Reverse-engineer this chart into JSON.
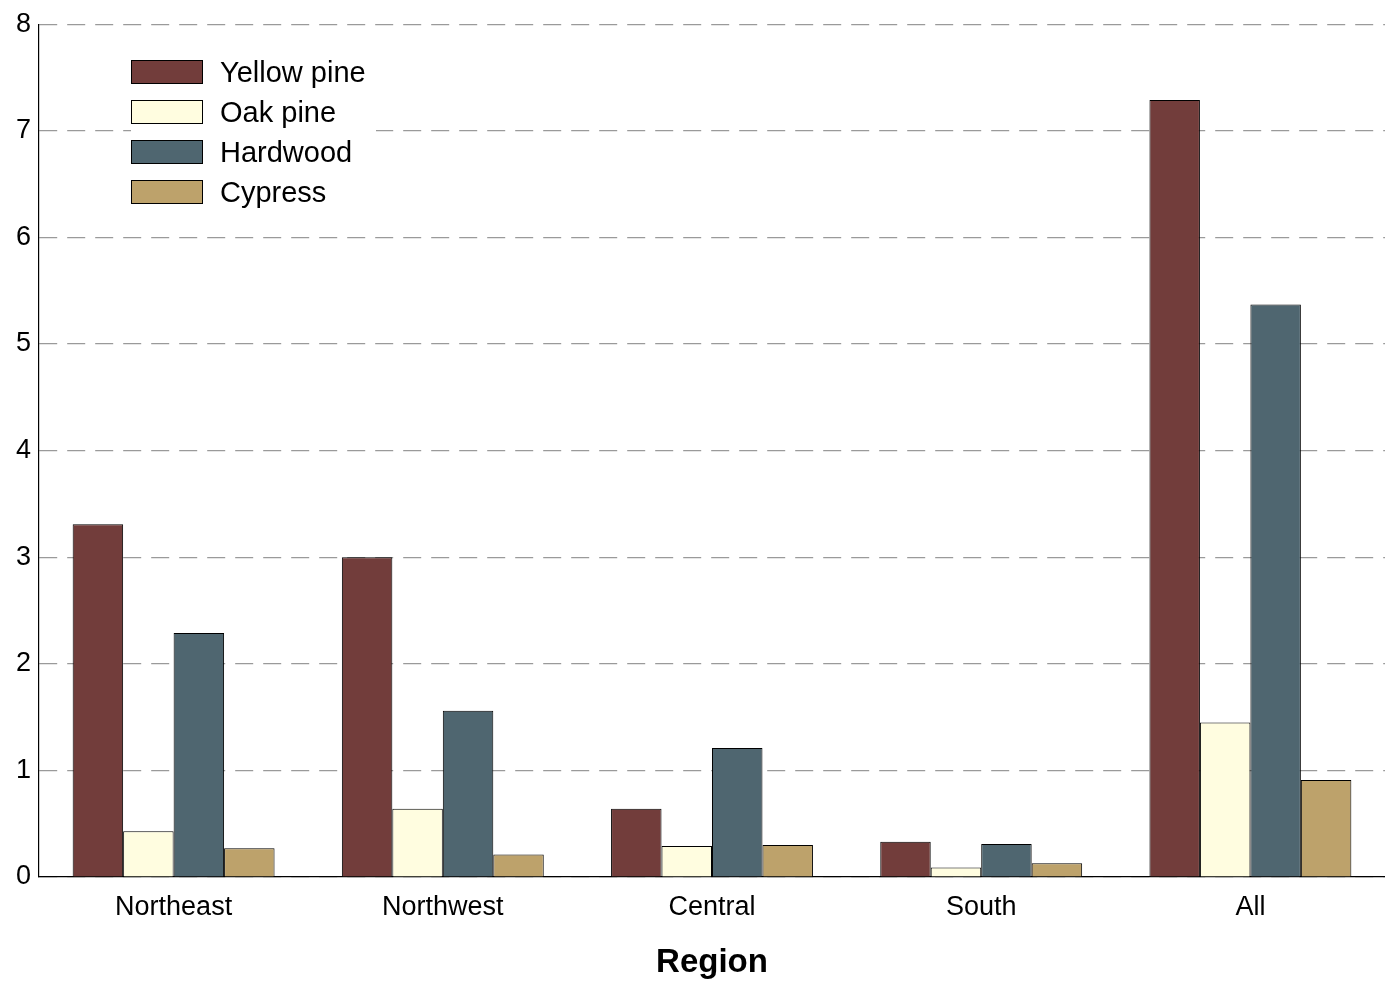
{
  "chart_data": {
    "type": "bar",
    "xlabel": "Region",
    "categories": [
      "Northeast",
      "Northwest",
      "Central",
      "South",
      "All"
    ],
    "series": [
      {
        "name": "Yellow pine",
        "color": "#723d3b",
        "values": [
          3.31,
          3.0,
          0.64,
          0.33,
          7.29
        ]
      },
      {
        "name": "Oak pine",
        "color": "#fffde0",
        "values": [
          0.43,
          0.64,
          0.29,
          0.09,
          1.45
        ]
      },
      {
        "name": "Hardwood",
        "color": "#4f6670",
        "values": [
          2.29,
          1.56,
          1.21,
          0.31,
          5.37
        ]
      },
      {
        "name": "Cypress",
        "color": "#bda26b",
        "values": [
          0.27,
          0.21,
          0.3,
          0.13,
          0.91
        ]
      }
    ],
    "ylim": [
      0,
      8
    ],
    "yticks": [
      0,
      1,
      2,
      3,
      4,
      5,
      6,
      7,
      8
    ],
    "grid": "y",
    "legend": "top left"
  }
}
